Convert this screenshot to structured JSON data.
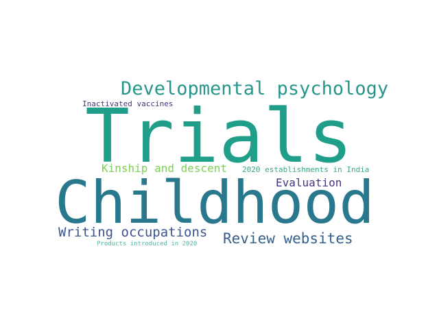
{
  "word_cloud": {
    "words": [
      {
        "text": "Trials",
        "color": "#1f9e89"
      },
      {
        "text": "Childhood",
        "color": "#2a788e"
      },
      {
        "text": "Developmental psychology",
        "color": "#27968a"
      },
      {
        "text": "Inactivated vaccines",
        "color": "#46337e"
      },
      {
        "text": "Kinship and descent",
        "color": "#7ad151"
      },
      {
        "text": "2020 establishments in India",
        "color": "#3aa68a"
      },
      {
        "text": "Evaluation",
        "color": "#46337e"
      },
      {
        "text": "Writing occupations",
        "color": "#3b528b"
      },
      {
        "text": "Review websites",
        "color": "#355f8d"
      },
      {
        "text": "Products introduced in 2020",
        "color": "#4fb4a0"
      }
    ]
  }
}
